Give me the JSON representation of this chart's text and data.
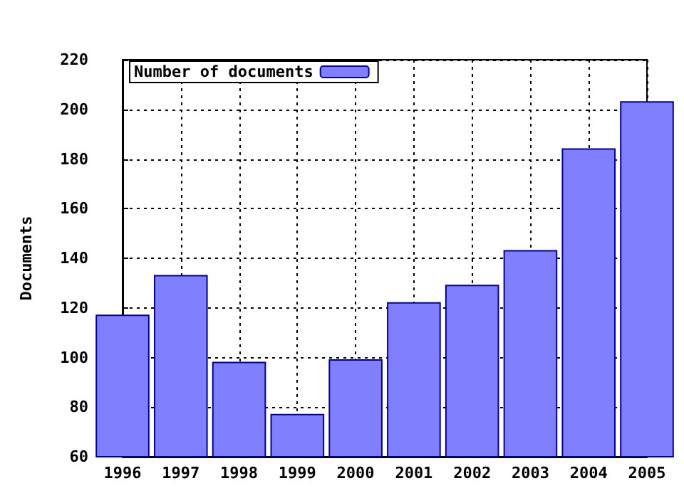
{
  "chart_data": {
    "type": "bar",
    "ylabel": "Documents",
    "x": [
      1996,
      1997,
      1998,
      1999,
      2000,
      2001,
      2002,
      2003,
      2004,
      2005
    ],
    "series": [
      {
        "name": "Number of documents",
        "color": "#8080ff",
        "values": [
          117,
          133,
          98,
          77,
          99,
          122,
          129,
          143,
          184,
          203
        ]
      }
    ],
    "xlim": [
      1996,
      2005
    ],
    "xticks": [
      1996,
      1997,
      1998,
      1999,
      2000,
      2001,
      2002,
      2003,
      2004,
      2005
    ],
    "ylim": [
      60,
      220
    ],
    "yticks": [
      60,
      80,
      100,
      120,
      140,
      160,
      180,
      200,
      220
    ],
    "grid": true,
    "legend": "top left"
  }
}
